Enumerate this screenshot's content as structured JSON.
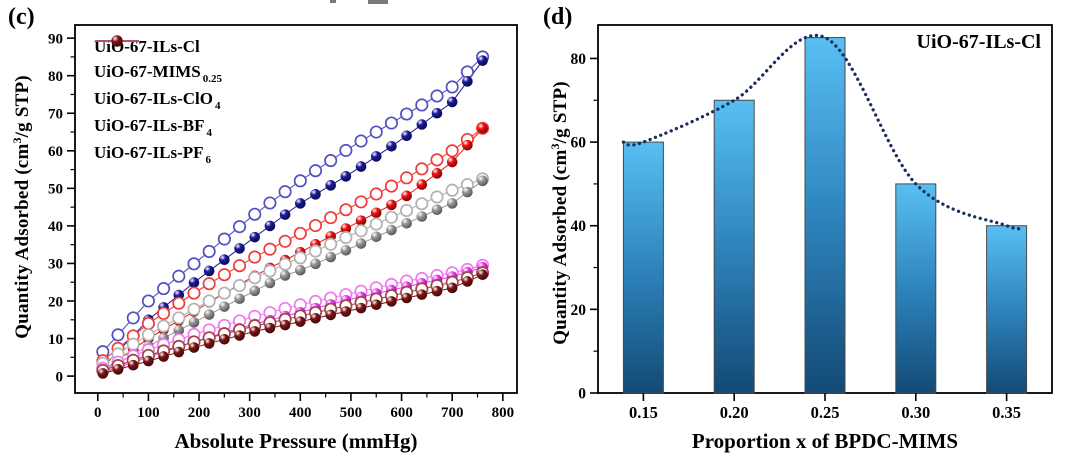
{
  "panels": {
    "c": {
      "label": "(c)",
      "xlabel": "Absolute Pressure (mmHg)",
      "ylabel": {
        "pre": "Quantity Adsorbed (cm",
        "sup": "3",
        "post": "/g STP)"
      }
    },
    "d": {
      "label": "(d)",
      "title": "UiO-67-ILs-Cl",
      "xlabel": "Proportion x of BPDC-MIMS",
      "ylabel": {
        "pre": "Quantity Adsorbed (cm",
        "sup": "3",
        "post": "/g STP)"
      }
    }
  },
  "chart_data": [
    {
      "id": "c",
      "type": "scatter",
      "title": "",
      "xlabel": "Absolute Pressure (mmHg)",
      "ylabel": "Quantity Adsorbed (cm3/g STP)",
      "xlim": [
        -45,
        828
      ],
      "ylim": [
        -4.5,
        93.5
      ],
      "xticks": [
        0,
        100,
        200,
        300,
        400,
        500,
        600,
        700,
        800
      ],
      "yticks": [
        0,
        10,
        20,
        30,
        40,
        50,
        60,
        70,
        80,
        90
      ],
      "x_minor_step": 50,
      "y_minor_step": 5,
      "grid": false,
      "legend_position": "top-left",
      "marker_note": "filled markers = adsorption branch, open markers = desorption branch",
      "x_mmHg": [
        10,
        40,
        70,
        100,
        130,
        160,
        190,
        220,
        250,
        280,
        310,
        340,
        370,
        400,
        430,
        460,
        490,
        520,
        550,
        580,
        610,
        640,
        670,
        700,
        730,
        760
      ],
      "series": [
        {
          "name": "UiO-67-ILs-Cl",
          "name_sub": "",
          "color": "#1a1a99",
          "dark": "#0a0a52",
          "open_color": "#5252bf",
          "adsorption": [
            2.4,
            6.6,
            10.8,
            15,
            18.3,
            21.6,
            24.9,
            28,
            31,
            34,
            37,
            40,
            43,
            46,
            48.4,
            50.8,
            53.2,
            55.8,
            58.5,
            61.2,
            64,
            67,
            70,
            73,
            78.5,
            84
          ],
          "desorption": [
            6.5,
            11,
            15.5,
            20,
            23.3,
            26.6,
            29.9,
            33.2,
            36.5,
            39.8,
            43.1,
            46.1,
            49.1,
            52,
            54.7,
            57.4,
            60.1,
            62.6,
            65,
            67.4,
            69.8,
            72.2,
            74.6,
            77,
            81,
            85
          ]
        },
        {
          "name": "UiO-67-MIMS",
          "name_sub": "0.25",
          "color": "#ee1111",
          "dark": "#7e0505",
          "open_color": "#f23b3b",
          "adsorption": [
            1.5,
            4.3,
            7.2,
            10,
            12.4,
            14.8,
            17.2,
            19.6,
            22,
            24.4,
            26.7,
            28.8,
            30.9,
            33,
            35.1,
            37.2,
            39.3,
            41.4,
            43.5,
            45.6,
            48,
            51,
            54,
            57,
            61.5,
            66
          ],
          "desorption": [
            4.1,
            7.4,
            10.7,
            14,
            16.7,
            19.4,
            22.1,
            24.6,
            27,
            29.4,
            31.7,
            33.8,
            35.9,
            38,
            40.1,
            42.2,
            44.3,
            46.4,
            48.5,
            50.6,
            52.8,
            55.2,
            57.6,
            60,
            63,
            66
          ]
        },
        {
          "name": "UiO-67-ILs-ClO",
          "name_sub": "4",
          "color": "#989898",
          "dark": "#555555",
          "open_color": "#b2b2b2",
          "adsorption": [
            1.3,
            3.5,
            5.8,
            8,
            10.1,
            12.2,
            14.3,
            16.4,
            18.5,
            20.6,
            22.7,
            24.8,
            26.8,
            28.2,
            29.9,
            31.7,
            33.5,
            35.3,
            37.1,
            38.9,
            40.7,
            42.5,
            44.3,
            46,
            49,
            52
          ],
          "desorption": [
            3.4,
            5.9,
            8.5,
            11,
            13.3,
            15.5,
            17.8,
            20,
            22.1,
            24.1,
            26.2,
            28,
            29.8,
            31.5,
            33.3,
            35.1,
            36.9,
            38.7,
            40.5,
            42.3,
            44.1,
            45.9,
            47.7,
            49.5,
            51,
            52.5
          ]
        },
        {
          "name": "UiO-67-ILs-BF",
          "name_sub": "4",
          "color": "#e83ee8",
          "dark": "#8d118d",
          "open_color": "#f07af0",
          "adsorption": [
            1,
            2.3,
            3.7,
            5,
            6.4,
            7.7,
            9.1,
            10.4,
            11.6,
            12.7,
            13.9,
            14.9,
            16,
            17,
            18.1,
            19.1,
            20.2,
            21.1,
            22,
            22.9,
            23.8,
            24.7,
            25.6,
            26.5,
            27.7,
            29
          ],
          "desorption": [
            2.1,
            3.7,
            5.4,
            7,
            8.4,
            9.7,
            11.1,
            12.3,
            13.5,
            14.7,
            15.9,
            16.9,
            18,
            19,
            19.9,
            20.8,
            21.7,
            22.6,
            23.5,
            24.4,
            25.3,
            26,
            26.8,
            27.5,
            28.4,
            29.5
          ]
        },
        {
          "name": "UiO-67-ILs-PF",
          "name_sub": "6",
          "color": "#7c1416",
          "dark": "#400708",
          "open_color": "#a04648",
          "adsorption": [
            0.7,
            1.8,
            2.9,
            4,
            5.2,
            6.4,
            7.6,
            8.7,
            9.8,
            10.8,
            11.9,
            12.8,
            13.6,
            14.5,
            15.4,
            16.3,
            17.2,
            18.1,
            19,
            19.9,
            20.8,
            21.7,
            22.6,
            23.5,
            25.2,
            27
          ],
          "desorption": [
            1.5,
            2.8,
            4.2,
            5.5,
            6.7,
            7.9,
            9.1,
            10.2,
            11.3,
            12.3,
            13.4,
            14.2,
            15.1,
            16,
            16.9,
            17.8,
            18.7,
            19.6,
            20.5,
            21.4,
            22.3,
            23.2,
            24.1,
            25,
            26.2,
            27.5
          ]
        }
      ]
    },
    {
      "id": "d",
      "type": "bar",
      "title": "UiO-67-ILs-Cl",
      "xlabel": "Proportion x of BPDC-MIMS",
      "ylabel": "Quantity Adsorbed (cm3/g STP)",
      "categories": [
        "0.15",
        "0.20",
        "0.25",
        "0.30",
        "0.35"
      ],
      "values": [
        60,
        70,
        85,
        50,
        40
      ],
      "ylim": [
        0,
        88
      ],
      "yticks": [
        0,
        20,
        40,
        60,
        80
      ],
      "y_minor_step": 10,
      "grid": false,
      "bar_gradient_top": "#58bff2",
      "bar_gradient_mid": "#2e84bd",
      "bar_gradient_bottom": "#134a75",
      "bar_border": "#4a4a4a",
      "trend_line": {
        "style": "dotted",
        "color": "#1b3060"
      }
    }
  ]
}
